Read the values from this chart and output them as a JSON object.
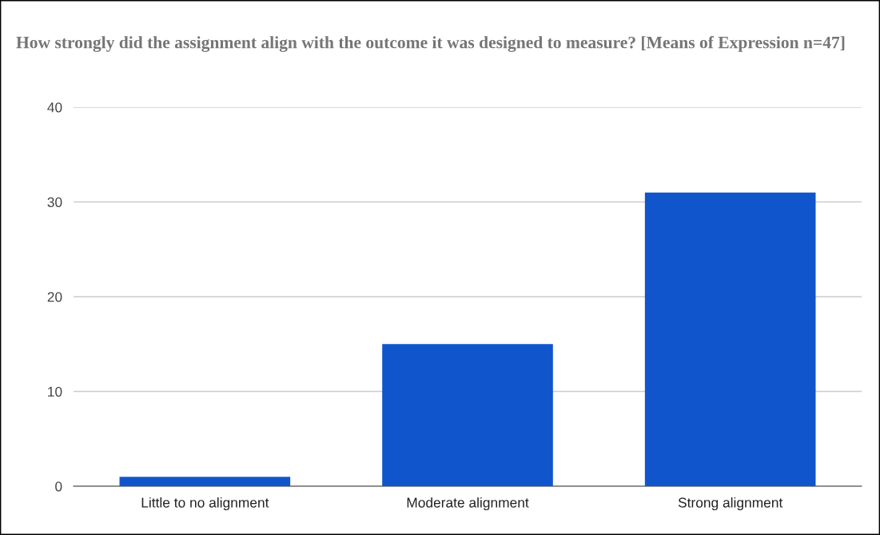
{
  "chart_data": {
    "type": "bar",
    "title": "How strongly did the assignment align with the outcome it was designed to measure? [Means of Expression n=47]",
    "categories": [
      "Little to no alignment",
      "Moderate alignment",
      "Strong alignment"
    ],
    "values": [
      1,
      15,
      31
    ],
    "color": "#1155cc",
    "ylim": [
      0,
      40
    ],
    "yticks": [
      0,
      10,
      20,
      30,
      40
    ],
    "grid": "y",
    "legend": false
  }
}
